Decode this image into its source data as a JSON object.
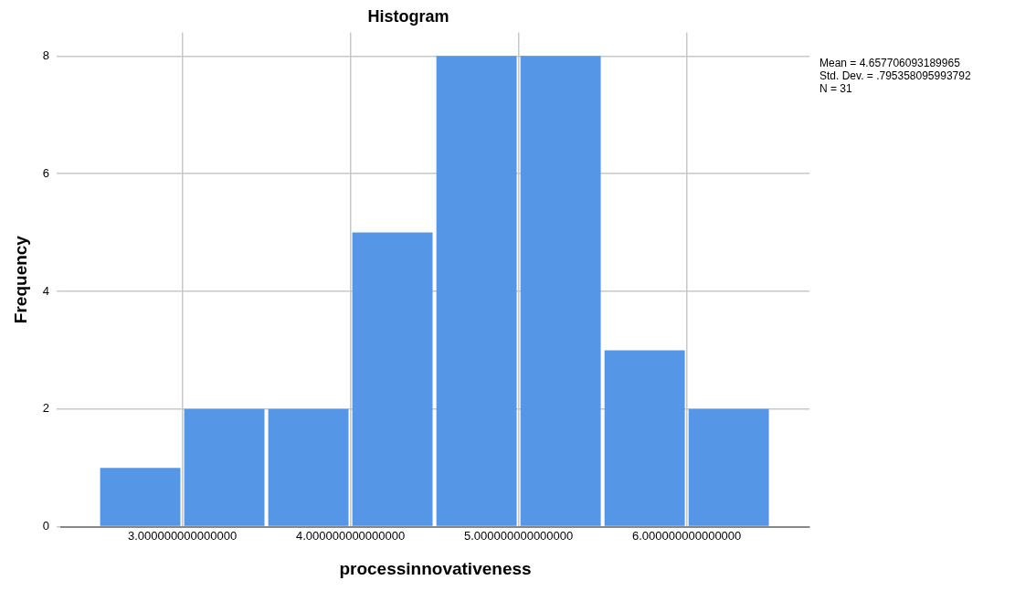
{
  "chart_data": {
    "type": "histogram",
    "title": "Histogram",
    "xlabel": "processinnovativeness",
    "ylabel": "Frequency",
    "bins": [
      2.5,
      3.0,
      3.5,
      4.0,
      4.5,
      5.0,
      5.5,
      6.0,
      6.5
    ],
    "values": [
      1,
      2,
      2,
      5,
      8,
      8,
      3,
      2
    ],
    "color": "#5596e6",
    "xlim": [
      2.28,
      6.73
    ],
    "xticks": [
      {
        "value": 3,
        "label": "3.000000000000000"
      },
      {
        "value": 4,
        "label": "4.000000000000000"
      },
      {
        "value": 5,
        "label": "5.000000000000000"
      },
      {
        "value": 6,
        "label": "6.000000000000000"
      }
    ],
    "ylim": [
      0,
      8.4
    ],
    "yticks": [
      0,
      2,
      4,
      6,
      8
    ],
    "grid": true,
    "legend": false,
    "annotations": [
      "Mean = 4.657706093189965",
      "Std. Dev. = .795358095993792",
      "N = 31"
    ]
  }
}
